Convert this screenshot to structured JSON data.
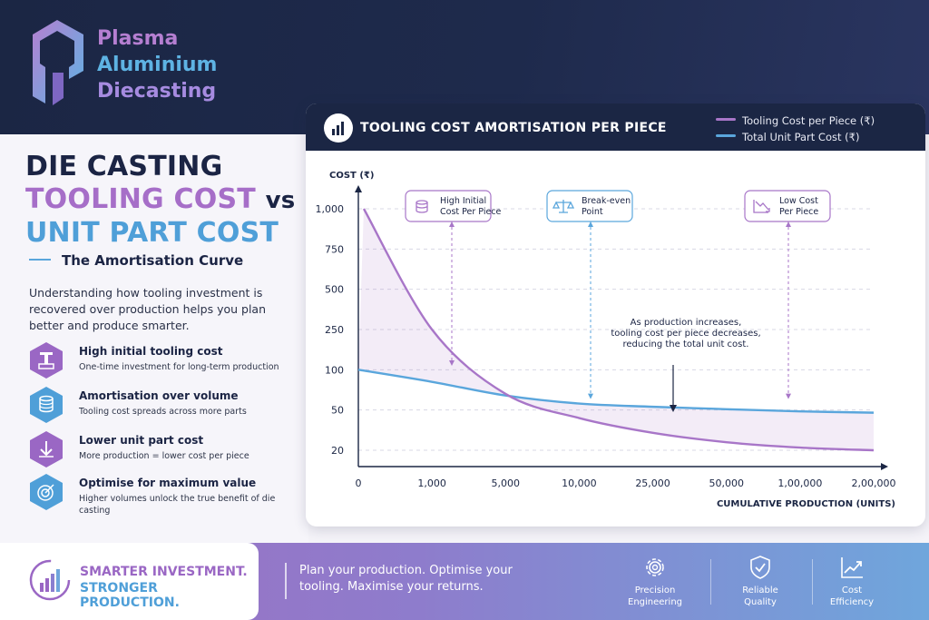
{
  "brand": {
    "line1": "Plasma",
    "line2": "Aluminium",
    "line3": "Diecasting"
  },
  "headline": {
    "line1": "DIE CASTING",
    "line2a": "TOOLING COST",
    "line2b": "vs",
    "line3": "UNIT PART COST",
    "subtitle": "The Amortisation Curve",
    "intro": "Understanding how tooling investment is recovered over production helps you plan better and produce smarter."
  },
  "features": [
    {
      "icon": "die-tool-icon",
      "title": "High initial tooling cost",
      "desc": "One-time investment for long-term production",
      "color": "#9a67c4"
    },
    {
      "icon": "coin-stack-icon",
      "title": "Amortisation over volume",
      "desc": "Tooling cost spreads across more parts",
      "color": "#4f9fd8"
    },
    {
      "icon": "down-arrow-icon",
      "title": "Lower unit part cost",
      "desc": "More production = lower cost per piece",
      "color": "#9a67c4"
    },
    {
      "icon": "target-icon",
      "title": "Optimise for maximum value",
      "desc": "Higher volumes unlock the true benefit of die casting",
      "color": "#4f9fd8"
    }
  ],
  "chart_header": {
    "title": "TOOLING COST AMORTISATION PER PIECE"
  },
  "colors": {
    "tooling": "#a876c8",
    "total": "#5aa6dc",
    "navy": "#1b2644"
  },
  "chart_data": {
    "type": "line",
    "title": "TOOLING COST AMORTISATION PER PIECE",
    "xlabel": "CUMULATIVE PRODUCTION (UNITS)",
    "ylabel": "COST (₹)",
    "x_scale": "categorical",
    "y_scale": "categorical",
    "x_ticks": [
      "0",
      "1,000",
      "5,000",
      "10,000",
      "25,000",
      "50,000",
      "1,00,000",
      "2,00,000"
    ],
    "y_ticks": [
      "1,000",
      "750",
      "500",
      "250",
      "100",
      "50",
      "20"
    ],
    "grid": "horizontal dashed",
    "legend_position": "top-right",
    "series": [
      {
        "name": "Tooling Cost per Piece (₹)",
        "color": "#a876c8",
        "fill": true,
        "points": [
          [
            0,
            1000
          ],
          [
            1000,
            250
          ],
          [
            5000,
            70
          ],
          [
            10000,
            44
          ],
          [
            25000,
            33
          ],
          [
            50000,
            26
          ],
          [
            100000,
            22
          ],
          [
            200000,
            20
          ]
        ]
      },
      {
        "name": "Total Unit Part Cost (₹)",
        "color": "#5aa6dc",
        "fill": false,
        "points": [
          [
            0,
            100
          ],
          [
            1000,
            85
          ],
          [
            5000,
            68
          ],
          [
            10000,
            58
          ],
          [
            25000,
            54
          ],
          [
            50000,
            51
          ],
          [
            100000,
            49
          ],
          [
            200000,
            48
          ]
        ]
      }
    ],
    "annotations": [
      {
        "label1": "High Initial",
        "label2": "Cost Per Piece",
        "icon": "coins-icon",
        "x": "1,000",
        "color": "#a876c8"
      },
      {
        "label1": "Break-even",
        "label2": "Point",
        "icon": "scale-icon",
        "x": "10,000",
        "color": "#5aa6dc"
      },
      {
        "label1": "Low Cost",
        "label2": "Per Piece",
        "icon": "trend-down-icon",
        "x": "1,00,000",
        "color": "#a876c8"
      }
    ],
    "note": [
      "As production increases,",
      "tooling cost per piece decreases,",
      "reducing the total unit cost."
    ]
  },
  "footer": {
    "tag1": "SMARTER INVESTMENT.",
    "tag2": "STRONGER PRODUCTION.",
    "message": "Plan your production. Optimise your tooling. Maximise your returns.",
    "features": [
      {
        "icon": "gear-icon",
        "line1": "Precision",
        "line2": "Engineering"
      },
      {
        "icon": "shield-check-icon",
        "line1": "Reliable",
        "line2": "Quality"
      },
      {
        "icon": "chart-up-icon",
        "line1": "Cost",
        "line2": "Efficiency"
      }
    ]
  }
}
